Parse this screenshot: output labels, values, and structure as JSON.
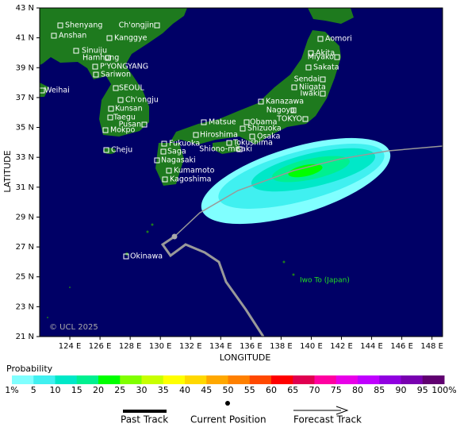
{
  "map": {
    "xlabel": "LONGITUDE",
    "ylabel": "LATITUDE",
    "xlim": [
      122,
      148.7
    ],
    "ylim": [
      21,
      43
    ],
    "xticks": [
      {
        "value": 124,
        "label": "124 E"
      },
      {
        "value": 126,
        "label": "126 E"
      },
      {
        "value": 128,
        "label": "128 E"
      },
      {
        "value": 130,
        "label": "130 E"
      },
      {
        "value": 132,
        "label": "132 E"
      },
      {
        "value": 134,
        "label": "134 E"
      },
      {
        "value": 136,
        "label": "136 E"
      },
      {
        "value": 138,
        "label": "138 E"
      },
      {
        "value": 140,
        "label": "140 E"
      },
      {
        "value": 142,
        "label": "142 E"
      },
      {
        "value": 144,
        "label": "144 E"
      },
      {
        "value": 146,
        "label": "146 E"
      },
      {
        "value": 148,
        "label": "148 E"
      }
    ],
    "yticks": [
      {
        "value": 21,
        "label": "21 N"
      },
      {
        "value": 23,
        "label": "23 N"
      },
      {
        "value": 25,
        "label": "25 N"
      },
      {
        "value": 27,
        "label": "27 N"
      },
      {
        "value": 29,
        "label": "29 N"
      },
      {
        "value": 31,
        "label": "31 N"
      },
      {
        "value": 33,
        "label": "33 N"
      },
      {
        "value": 35,
        "label": "35 N"
      },
      {
        "value": 37,
        "label": "37 N"
      },
      {
        "value": 39,
        "label": "39 N"
      },
      {
        "value": 41,
        "label": "41 N"
      },
      {
        "value": 43,
        "label": "43 N"
      }
    ],
    "cities": [
      "Shenyang",
      "Ch'ongjin",
      "Anshan",
      "Kanggye",
      "Sinuiju",
      "Hamhung",
      "P'YONGYANG",
      "Sariwon",
      "SEOUL",
      "Weihai",
      "Ch'ongju",
      "Kunsan",
      "Taegu",
      "Pusan",
      "Mokpo",
      "Cheju",
      "Aomori",
      "Akita",
      "Miyako",
      "Sakata",
      "Sendai",
      "Niigata",
      "Iwaki",
      "Kanazawa",
      "Nagoya",
      "Matsue",
      "Obama",
      "TOKYO",
      "Hiroshima",
      "Shizuoka",
      "Osaka",
      "Fukuoka",
      "Tokushima",
      "Saga",
      "Shiono-misaki",
      "Nagasaki",
      "Kumamoto",
      "Kagoshima",
      "Okinawa"
    ],
    "region_label": "Iwo To (Japan)",
    "copyright": "© UCL 2025"
  },
  "legend": {
    "title": "Probability",
    "scale_labels": [
      "1%",
      "5",
      "10",
      "15",
      "20",
      "25",
      "30",
      "35",
      "40",
      "45",
      "50",
      "55",
      "60",
      "65",
      "70",
      "75",
      "80",
      "85",
      "90",
      "95",
      "100%"
    ],
    "scale_colors": [
      "#80ffff",
      "#40f0f0",
      "#00e8c8",
      "#00f090",
      "#00ff00",
      "#80ff00",
      "#c8ff00",
      "#ffff00",
      "#ffd800",
      "#ffa800",
      "#ff8000",
      "#ff4800",
      "#ff0000",
      "#e00050",
      "#ff00a0",
      "#e800e8",
      "#c000ff",
      "#9000e0",
      "#7800b0",
      "#600070"
    ],
    "items": [
      "Past Track",
      "Current Position",
      "Forecast Track"
    ]
  }
}
